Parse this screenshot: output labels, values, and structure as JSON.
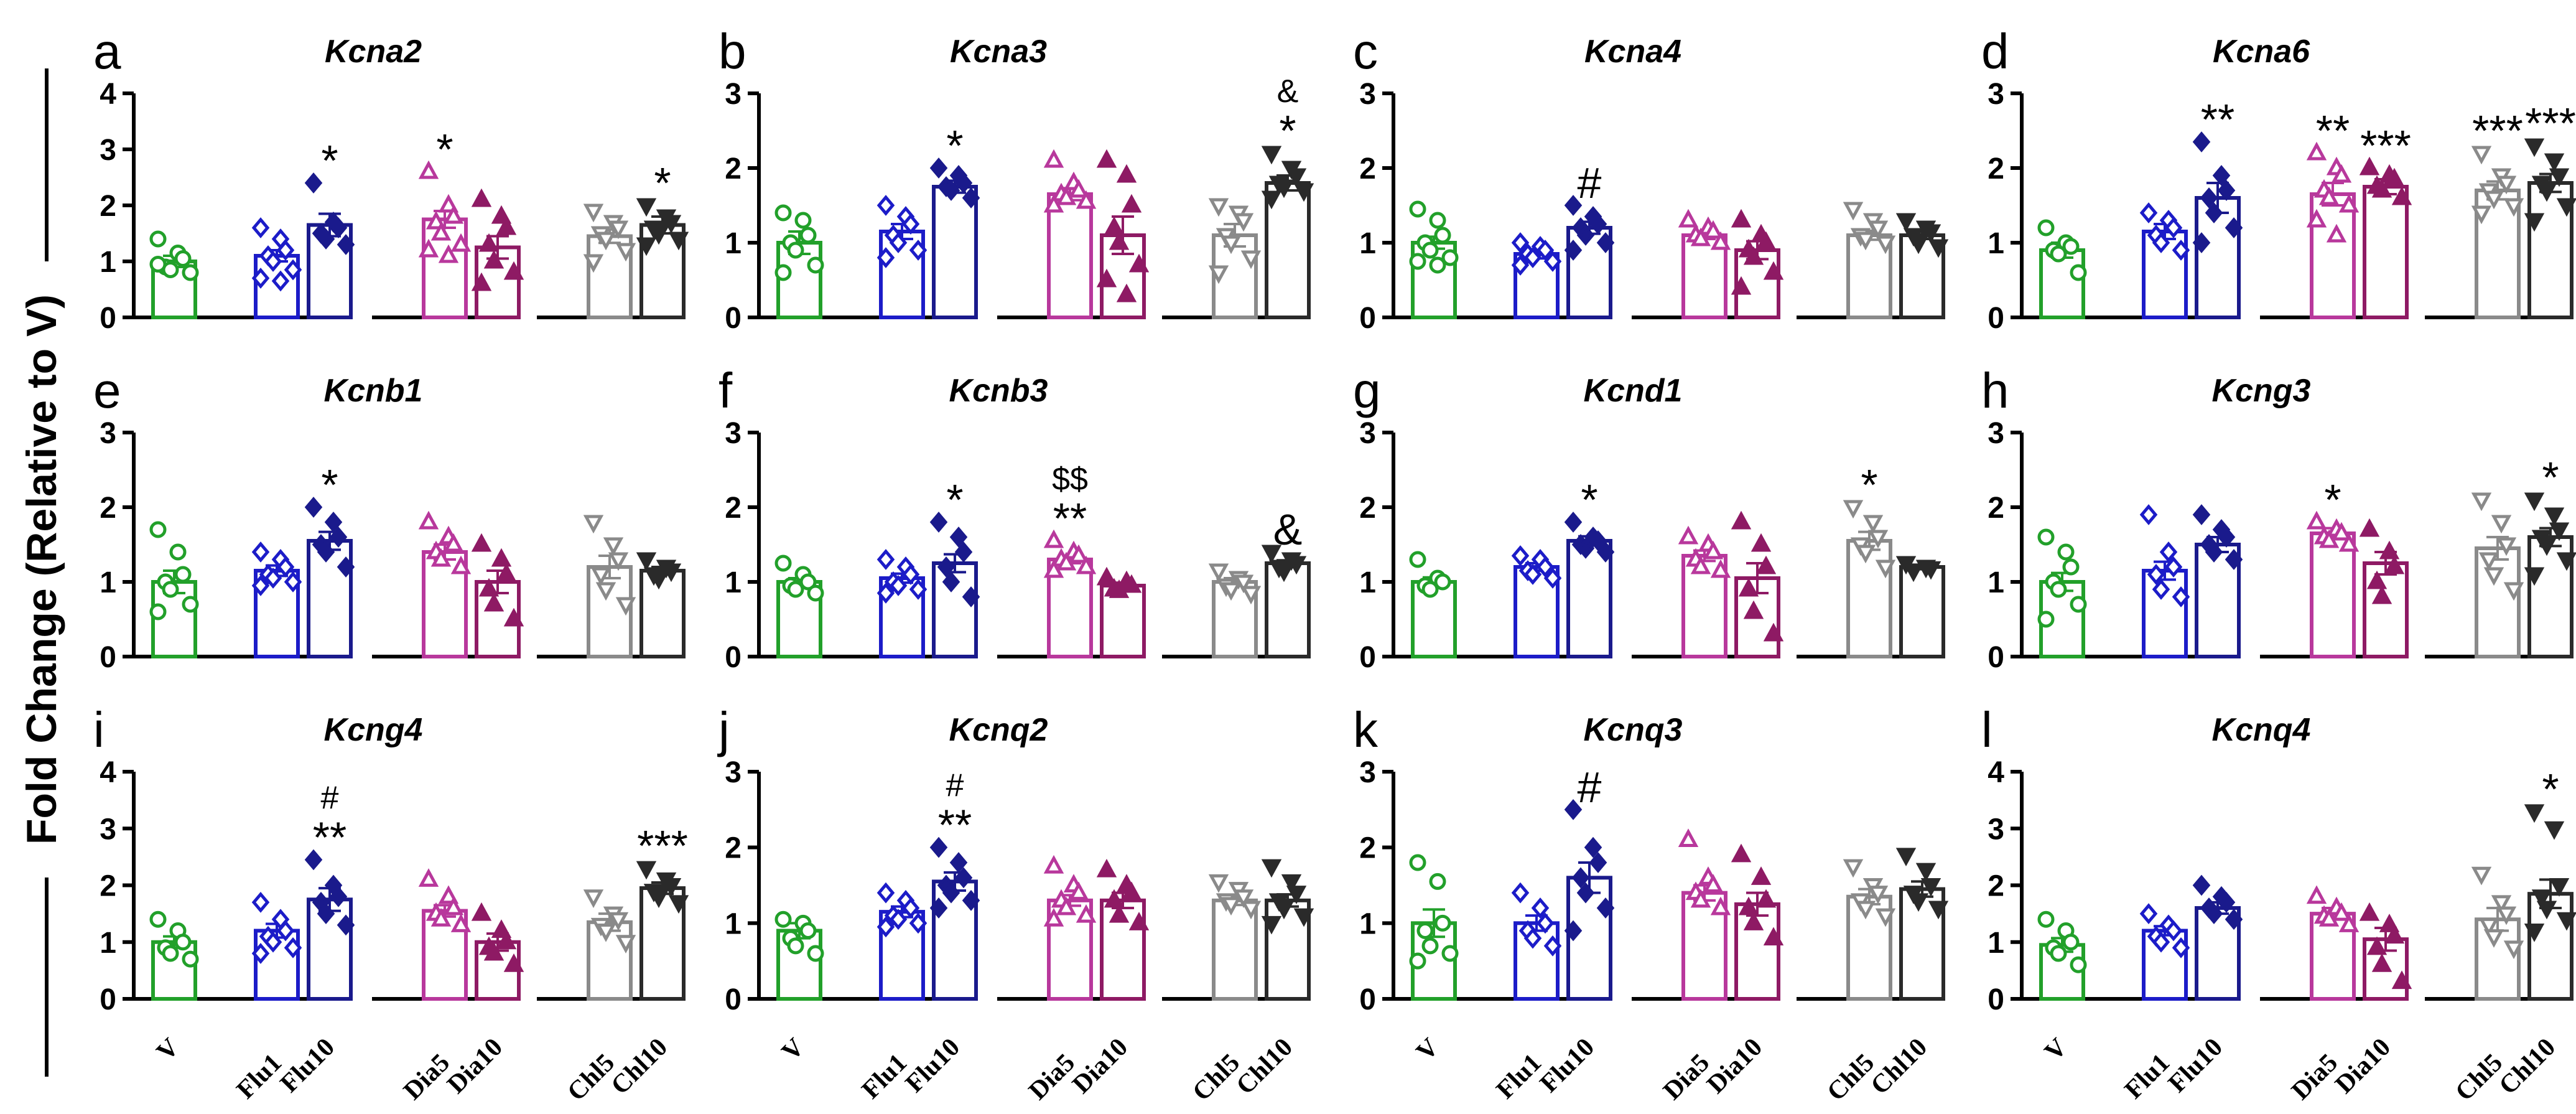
{
  "figure": {
    "ylabel": "Fold Change (Relative to V)",
    "groups": [
      "V",
      "Flu1",
      "Flu10",
      "Dia5",
      "Dia10",
      "Chl5",
      "Chl10"
    ],
    "colors": {
      "V": "#22a02a",
      "Flu1": "#1c1cc8",
      "Flu10": "#1a1a8c",
      "Dia5": "#b8389c",
      "Dia10": "#8e1a64",
      "Chl5": "#8a8a8a",
      "Chl10": "#2a2a2a",
      "axis": "#000000"
    }
  },
  "chart_data": [
    {
      "type": "bar",
      "panel": "a",
      "title": "Kcna2",
      "ylim": [
        0,
        4
      ],
      "yticks": [
        "0",
        "1",
        "2",
        "3",
        "4"
      ],
      "categories": [
        "V",
        "Flu1",
        "Flu10",
        "Dia5",
        "Dia10",
        "Chl5",
        "Chl10"
      ],
      "values": [
        1.0,
        1.1,
        1.65,
        1.75,
        1.25,
        1.45,
        1.65
      ],
      "errors": [
        0.1,
        0.1,
        0.2,
        0.15,
        0.2,
        0.12,
        0.15
      ],
      "points": [
        [
          1.4,
          1.15,
          1.05,
          0.9,
          0.85,
          0.8,
          0.95
        ],
        [
          1.6,
          1.4,
          1.2,
          1.1,
          1.0,
          0.85,
          0.7,
          0.65
        ],
        [
          2.4,
          1.7,
          1.6,
          1.5,
          1.4,
          1.3
        ],
        [
          2.6,
          2.0,
          1.8,
          1.7,
          1.5,
          1.3,
          1.2,
          1.1
        ],
        [
          2.1,
          1.8,
          1.6,
          1.3,
          1.0,
          0.8,
          0.6
        ],
        [
          1.9,
          1.7,
          1.6,
          1.5,
          1.4,
          1.2,
          1.0
        ],
        [
          2.0,
          1.8,
          1.7,
          1.6,
          1.5,
          1.4,
          1.3
        ]
      ],
      "annotations": [
        {
          "group": "Flu10",
          "text": "*"
        },
        {
          "group": "Dia5",
          "text": "*"
        },
        {
          "group": "Chl10",
          "text": "*"
        }
      ]
    },
    {
      "type": "bar",
      "panel": "b",
      "title": "Kcna3",
      "ylim": [
        0,
        3
      ],
      "yticks": [
        "0",
        "1",
        "2",
        "3"
      ],
      "categories": [
        "V",
        "Flu1",
        "Flu10",
        "Dia5",
        "Dia10",
        "Chl5",
        "Chl10"
      ],
      "values": [
        1.0,
        1.15,
        1.75,
        1.65,
        1.1,
        1.1,
        1.8
      ],
      "errors": [
        0.15,
        0.1,
        0.08,
        0.08,
        0.25,
        0.15,
        0.1
      ],
      "points": [
        [
          1.4,
          1.3,
          1.1,
          1.0,
          0.9,
          0.7,
          0.6
        ],
        [
          1.5,
          1.35,
          1.25,
          1.1,
          1.0,
          0.9,
          0.8
        ],
        [
          2.0,
          1.9,
          1.8,
          1.75,
          1.7,
          1.6
        ],
        [
          2.1,
          1.8,
          1.7,
          1.65,
          1.6,
          1.55,
          1.5
        ],
        [
          2.1,
          1.9,
          1.5,
          1.2,
          1.0,
          0.7,
          0.5,
          0.3
        ],
        [
          1.5,
          1.4,
          1.3,
          1.1,
          1.0,
          0.8,
          0.6
        ],
        [
          2.2,
          2.0,
          1.9,
          1.8,
          1.75,
          1.7,
          1.6
        ]
      ],
      "annotations": [
        {
          "group": "Flu10",
          "text": "*"
        },
        {
          "group": "Chl10",
          "text": "*",
          "extra": "&"
        }
      ]
    },
    {
      "type": "bar",
      "panel": "c",
      "title": "Kcna4",
      "ylim": [
        0,
        3
      ],
      "yticks": [
        "0",
        "1",
        "2",
        "3"
      ],
      "categories": [
        "V",
        "Flu1",
        "Flu10",
        "Dia5",
        "Dia10",
        "Chl5",
        "Chl10"
      ],
      "values": [
        1.0,
        0.85,
        1.2,
        1.1,
        0.9,
        1.1,
        1.1
      ],
      "errors": [
        0.08,
        0.06,
        0.08,
        0.05,
        0.12,
        0.06,
        0.05
      ],
      "points": [
        [
          1.45,
          1.3,
          1.1,
          1.0,
          0.9,
          0.8,
          0.75,
          0.7
        ],
        [
          1.0,
          0.95,
          0.9,
          0.85,
          0.8,
          0.75,
          0.7
        ],
        [
          1.5,
          1.35,
          1.25,
          1.2,
          1.1,
          1.0,
          0.9
        ],
        [
          1.3,
          1.2,
          1.15,
          1.1,
          1.05,
          1.0
        ],
        [
          1.3,
          1.1,
          1.0,
          0.9,
          0.8,
          0.6,
          0.4
        ],
        [
          1.45,
          1.3,
          1.2,
          1.1,
          1.05,
          1.0
        ],
        [
          1.3,
          1.2,
          1.15,
          1.1,
          1.0,
          0.95
        ]
      ],
      "annotations": [
        {
          "group": "Flu10",
          "text": "#"
        }
      ]
    },
    {
      "type": "bar",
      "panel": "d",
      "title": "Kcna6",
      "ylim": [
        0,
        3
      ],
      "yticks": [
        "0",
        "1",
        "2",
        "3"
      ],
      "categories": [
        "V",
        "Flu1",
        "Flu10",
        "Dia5",
        "Dia10",
        "Chl5",
        "Chl10"
      ],
      "values": [
        0.9,
        1.15,
        1.6,
        1.65,
        1.75,
        1.7,
        1.8
      ],
      "errors": [
        0.1,
        0.1,
        0.2,
        0.15,
        0.1,
        0.12,
        0.12
      ],
      "points": [
        [
          1.2,
          1.0,
          0.95,
          0.9,
          0.85,
          0.6
        ],
        [
          1.4,
          1.3,
          1.2,
          1.1,
          1.0,
          0.9
        ],
        [
          2.35,
          1.9,
          1.7,
          1.6,
          1.4,
          1.2,
          1.0
        ],
        [
          2.2,
          2.0,
          1.9,
          1.7,
          1.6,
          1.5,
          1.3,
          1.1
        ],
        [
          2.0,
          1.9,
          1.85,
          1.75,
          1.7,
          1.6
        ],
        [
          2.2,
          1.9,
          1.8,
          1.7,
          1.6,
          1.5,
          1.4
        ],
        [
          2.3,
          2.1,
          1.9,
          1.8,
          1.7,
          1.5,
          1.3
        ]
      ],
      "annotations": [
        {
          "group": "Flu10",
          "text": "**"
        },
        {
          "group": "Dia5",
          "text": "**"
        },
        {
          "group": "Dia10",
          "text": "***"
        },
        {
          "group": "Chl5",
          "text": "***"
        },
        {
          "group": "Chl10",
          "text": "***"
        }
      ]
    },
    {
      "type": "bar",
      "panel": "e",
      "title": "Kcnb1",
      "ylim": [
        0,
        3
      ],
      "yticks": [
        "0",
        "1",
        "2",
        "3"
      ],
      "categories": [
        "V",
        "Flu1",
        "Flu10",
        "Dia5",
        "Dia10",
        "Chl5",
        "Chl10"
      ],
      "values": [
        1.0,
        1.15,
        1.55,
        1.4,
        1.0,
        1.2,
        1.15
      ],
      "errors": [
        0.15,
        0.07,
        0.12,
        0.1,
        0.15,
        0.15,
        0.05
      ],
      "points": [
        [
          1.7,
          1.4,
          1.1,
          1.0,
          0.9,
          0.7,
          0.6
        ],
        [
          1.4,
          1.3,
          1.2,
          1.1,
          1.05,
          1.0,
          0.95
        ],
        [
          2.0,
          1.8,
          1.6,
          1.5,
          1.4,
          1.2
        ],
        [
          1.8,
          1.6,
          1.5,
          1.4,
          1.3,
          1.2
        ],
        [
          1.5,
          1.3,
          1.1,
          0.9,
          0.7,
          0.5
        ],
        [
          1.8,
          1.5,
          1.3,
          1.1,
          0.9,
          0.7
        ],
        [
          1.3,
          1.2,
          1.15,
          1.1,
          1.05
        ]
      ],
      "annotations": [
        {
          "group": "Flu10",
          "text": "*"
        }
      ]
    },
    {
      "type": "bar",
      "panel": "f",
      "title": "Kcnb3",
      "ylim": [
        0,
        3
      ],
      "yticks": [
        "0",
        "1",
        "2",
        "3"
      ],
      "categories": [
        "V",
        "Flu1",
        "Flu10",
        "Dia5",
        "Dia10",
        "Chl5",
        "Chl10"
      ],
      "values": [
        1.0,
        1.05,
        1.25,
        1.3,
        0.95,
        1.0,
        1.25
      ],
      "errors": [
        0.05,
        0.06,
        0.12,
        0.05,
        0.04,
        0.05,
        0.04
      ],
      "points": [
        [
          1.25,
          1.1,
          1.0,
          0.95,
          0.9,
          0.85
        ],
        [
          1.3,
          1.2,
          1.1,
          1.0,
          0.95,
          0.9,
          0.85
        ],
        [
          1.8,
          1.6,
          1.4,
          1.2,
          1.0,
          0.8
        ],
        [
          1.55,
          1.4,
          1.35,
          1.3,
          1.25,
          1.2,
          1.15
        ],
        [
          1.05,
          1.0,
          0.95,
          0.9,
          0.88
        ],
        [
          1.15,
          1.05,
          1.0,
          0.95,
          0.9,
          0.85
        ],
        [
          1.4,
          1.3,
          1.25,
          1.2,
          1.15
        ]
      ],
      "annotations": [
        {
          "group": "Flu10",
          "text": "*"
        },
        {
          "group": "Dia5",
          "text": "**",
          "extra": "$$"
        },
        {
          "group": "Chl10",
          "text": "&"
        }
      ]
    },
    {
      "type": "bar",
      "panel": "g",
      "title": "Kcnd1",
      "ylim": [
        0,
        3
      ],
      "yticks": [
        "0",
        "1",
        "2",
        "3"
      ],
      "categories": [
        "V",
        "Flu1",
        "Flu10",
        "Dia5",
        "Dia10",
        "Chl5",
        "Chl10"
      ],
      "values": [
        1.0,
        1.2,
        1.55,
        1.35,
        1.05,
        1.55,
        1.2
      ],
      "errors": [
        0.06,
        0.05,
        0.06,
        0.07,
        0.2,
        0.12,
        0.03
      ],
      "points": [
        [
          1.3,
          1.05,
          1.0,
          0.95,
          0.9
        ],
        [
          1.35,
          1.3,
          1.2,
          1.15,
          1.1,
          1.05
        ],
        [
          1.8,
          1.6,
          1.55,
          1.5,
          1.45,
          1.4
        ],
        [
          1.6,
          1.5,
          1.4,
          1.3,
          1.2,
          1.15
        ],
        [
          1.8,
          1.5,
          1.2,
          0.9,
          0.6,
          0.3
        ],
        [
          2.0,
          1.8,
          1.6,
          1.5,
          1.4,
          1.2
        ],
        [
          1.25,
          1.2,
          1.18,
          1.15
        ]
      ],
      "annotations": [
        {
          "group": "Flu10",
          "text": "*"
        },
        {
          "group": "Chl5",
          "text": "*"
        }
      ]
    },
    {
      "type": "bar",
      "panel": "h",
      "title": "Kcng3",
      "ylim": [
        0,
        3
      ],
      "yticks": [
        "0",
        "1",
        "2",
        "3"
      ],
      "categories": [
        "V",
        "Flu1",
        "Flu10",
        "Dia5",
        "Dia10",
        "Chl5",
        "Chl10"
      ],
      "values": [
        1.0,
        1.15,
        1.5,
        1.65,
        1.25,
        1.45,
        1.6
      ],
      "errors": [
        0.12,
        0.12,
        0.1,
        0.07,
        0.15,
        0.15,
        0.12
      ],
      "points": [
        [
          1.6,
          1.4,
          1.2,
          1.0,
          0.9,
          0.7,
          0.5
        ],
        [
          1.9,
          1.4,
          1.2,
          1.1,
          0.9,
          0.8
        ],
        [
          1.9,
          1.7,
          1.6,
          1.5,
          1.4,
          1.3
        ],
        [
          1.8,
          1.7,
          1.65,
          1.6,
          1.55,
          1.5
        ],
        [
          1.7,
          1.4,
          1.2,
          1.0,
          0.8
        ],
        [
          2.1,
          1.8,
          1.5,
          1.3,
          1.1,
          0.9
        ],
        [
          2.1,
          1.9,
          1.7,
          1.6,
          1.5,
          1.3,
          1.1
        ]
      ],
      "annotations": [
        {
          "group": "Dia5",
          "text": "*"
        },
        {
          "group": "Chl10",
          "text": "*"
        }
      ]
    },
    {
      "type": "bar",
      "panel": "i",
      "title": "Kcng4",
      "ylim": [
        0,
        4
      ],
      "yticks": [
        "0",
        "1",
        "2",
        "3",
        "4"
      ],
      "categories": [
        "V",
        "Flu1",
        "Flu10",
        "Dia5",
        "Dia10",
        "Chl5",
        "Chl10"
      ],
      "values": [
        1.0,
        1.2,
        1.75,
        1.55,
        1.0,
        1.35,
        1.95
      ],
      "errors": [
        0.1,
        0.12,
        0.2,
        0.1,
        0.15,
        0.15,
        0.1
      ],
      "points": [
        [
          1.4,
          1.2,
          1.0,
          0.9,
          0.8,
          0.7
        ],
        [
          1.7,
          1.4,
          1.2,
          1.1,
          1.0,
          0.9,
          0.8
        ],
        [
          2.45,
          2.0,
          1.8,
          1.7,
          1.5,
          1.3
        ],
        [
          2.1,
          1.8,
          1.6,
          1.5,
          1.4,
          1.3
        ],
        [
          1.5,
          1.2,
          1.0,
          0.9,
          0.8,
          0.6
        ],
        [
          1.8,
          1.5,
          1.4,
          1.3,
          1.2,
          1.0
        ],
        [
          2.3,
          2.1,
          2.0,
          1.9,
          1.8,
          1.7
        ]
      ],
      "annotations": [
        {
          "group": "Flu10",
          "text": "**",
          "extra": "#"
        },
        {
          "group": "Chl10",
          "text": "***"
        }
      ]
    },
    {
      "type": "bar",
      "panel": "j",
      "title": "Kcnq2",
      "ylim": [
        0,
        3
      ],
      "yticks": [
        "0",
        "1",
        "2",
        "3"
      ],
      "categories": [
        "V",
        "Flu1",
        "Flu10",
        "Dia5",
        "Dia10",
        "Chl5",
        "Chl10"
      ],
      "values": [
        0.9,
        1.15,
        1.55,
        1.3,
        1.3,
        1.3,
        1.3
      ],
      "errors": [
        0.1,
        0.07,
        0.12,
        0.07,
        0.1,
        0.06,
        0.08
      ],
      "points": [
        [
          1.05,
          1.0,
          0.9,
          0.8,
          0.7,
          0.6
        ],
        [
          1.4,
          1.3,
          1.2,
          1.1,
          1.05,
          1.0,
          0.95
        ],
        [
          2.0,
          1.8,
          1.6,
          1.5,
          1.4,
          1.3,
          1.2
        ],
        [
          1.75,
          1.5,
          1.4,
          1.3,
          1.2,
          1.1,
          1.05
        ],
        [
          1.7,
          1.5,
          1.4,
          1.3,
          1.1,
          1.0
        ],
        [
          1.55,
          1.45,
          1.35,
          1.3,
          1.25,
          1.2
        ],
        [
          1.75,
          1.55,
          1.4,
          1.3,
          1.2,
          1.1,
          1.0
        ]
      ],
      "annotations": [
        {
          "group": "Flu10",
          "text": "**",
          "extra": "#"
        }
      ]
    },
    {
      "type": "bar",
      "panel": "k",
      "title": "Kcnq3",
      "ylim": [
        0,
        3
      ],
      "yticks": [
        "0",
        "1",
        "2",
        "3"
      ],
      "categories": [
        "V",
        "Flu1",
        "Flu10",
        "Dia5",
        "Dia10",
        "Chl5",
        "Chl10"
      ],
      "values": [
        1.0,
        1.0,
        1.6,
        1.4,
        1.25,
        1.35,
        1.45
      ],
      "errors": [
        0.18,
        0.1,
        0.2,
        0.1,
        0.15,
        0.1,
        0.1
      ],
      "points": [
        [
          1.8,
          1.55,
          1.0,
          0.9,
          0.7,
          0.6,
          0.5
        ],
        [
          1.4,
          1.2,
          1.0,
          0.9,
          0.8,
          0.7
        ],
        [
          2.5,
          2.0,
          1.8,
          1.6,
          1.4,
          1.2,
          0.9
        ],
        [
          2.1,
          1.6,
          1.5,
          1.4,
          1.3,
          1.2
        ],
        [
          1.9,
          1.6,
          1.3,
          1.2,
          1.0,
          0.8
        ],
        [
          1.75,
          1.5,
          1.4,
          1.3,
          1.2,
          1.1
        ],
        [
          1.9,
          1.7,
          1.5,
          1.4,
          1.3,
          1.2
        ]
      ],
      "annotations": [
        {
          "group": "Flu10",
          "text": "#"
        }
      ]
    },
    {
      "type": "bar",
      "panel": "l",
      "title": "Kcnq4",
      "ylim": [
        0,
        4
      ],
      "yticks": [
        "0",
        "1",
        "2",
        "3",
        "4"
      ],
      "categories": [
        "V",
        "Flu1",
        "Flu10",
        "Dia5",
        "Dia10",
        "Chl5",
        "Chl10"
      ],
      "values": [
        0.95,
        1.2,
        1.6,
        1.5,
        1.05,
        1.4,
        1.85
      ],
      "errors": [
        0.12,
        0.08,
        0.1,
        0.1,
        0.2,
        0.2,
        0.25
      ],
      "points": [
        [
          1.4,
          1.2,
          1.0,
          0.9,
          0.8,
          0.6
        ],
        [
          1.5,
          1.3,
          1.2,
          1.1,
          1.0,
          0.9
        ],
        [
          2.0,
          1.8,
          1.7,
          1.6,
          1.5,
          1.4
        ],
        [
          1.8,
          1.6,
          1.5,
          1.45,
          1.4,
          1.3
        ],
        [
          1.5,
          1.3,
          1.1,
          0.9,
          0.6,
          0.3
        ],
        [
          2.2,
          1.7,
          1.5,
          1.3,
          1.1,
          0.9
        ],
        [
          3.3,
          3.0,
          2.0,
          1.8,
          1.6,
          1.4,
          1.2
        ]
      ],
      "annotations": [
        {
          "group": "Chl10",
          "text": "*"
        }
      ]
    }
  ]
}
